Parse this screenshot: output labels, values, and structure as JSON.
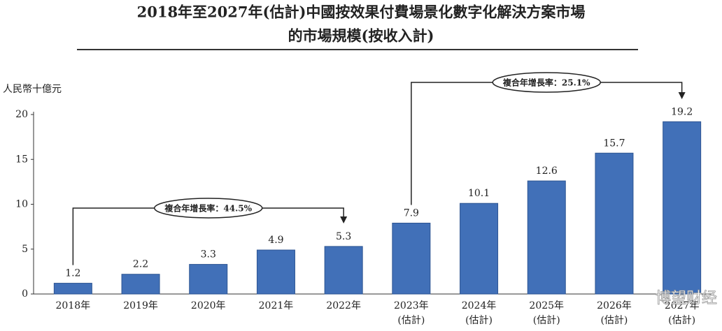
{
  "chart_data": {
    "type": "bar",
    "title": "2018年至2027年(估計)中國按效果付費場景化數字化解決方案市場",
    "subtitle": "的市場規模(按收入計)",
    "y_label": "人民幣十億元",
    "categories": [
      "2018年",
      "2019年",
      "2020年",
      "2021年",
      "2022年",
      "2023年\n(估計)",
      "2024年\n(估計)",
      "2025年\n(估計)",
      "2026年\n(估計)",
      "2027年\n(估計)"
    ],
    "values": [
      1.2,
      2.2,
      3.3,
      4.9,
      5.3,
      7.9,
      10.1,
      12.6,
      15.7,
      19.2
    ],
    "color": "#4170b8",
    "ylim": [
      0,
      20
    ],
    "yticks": [
      0,
      5,
      10,
      15,
      20
    ],
    "grid": false,
    "annotations": [
      {
        "text": "複合年增長率：44.5%"
      },
      {
        "text": "複合年增長率：25.1%"
      }
    ],
    "watermark": "博望财经"
  }
}
